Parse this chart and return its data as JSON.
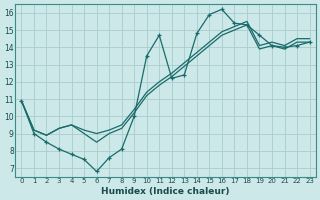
{
  "xlabel": "Humidex (Indice chaleur)",
  "bg_color": "#cce8e8",
  "grid_color": "#aacccc",
  "line_color": "#1a6b6b",
  "xlim": [
    -0.5,
    23.5
  ],
  "ylim": [
    6.5,
    16.5
  ],
  "xticks": [
    0,
    1,
    2,
    3,
    4,
    5,
    6,
    7,
    8,
    9,
    10,
    11,
    12,
    13,
    14,
    15,
    16,
    17,
    18,
    19,
    20,
    21,
    22,
    23
  ],
  "yticks": [
    7,
    8,
    9,
    10,
    11,
    12,
    13,
    14,
    15,
    16
  ],
  "line1_x": [
    0,
    1,
    2,
    3,
    4,
    5,
    6,
    7,
    8,
    9,
    10,
    11,
    12,
    13,
    14,
    15,
    16,
    17,
    18,
    19,
    20,
    21,
    22,
    23
  ],
  "line1_y": [
    10.9,
    9.0,
    8.5,
    8.1,
    7.8,
    7.5,
    6.8,
    7.6,
    8.1,
    10.0,
    13.5,
    14.7,
    12.2,
    12.4,
    14.8,
    15.9,
    16.2,
    15.4,
    15.3,
    14.7,
    14.1,
    14.0,
    14.1,
    14.3
  ],
  "line2_x": [
    0,
    1,
    2,
    3,
    4,
    5,
    6,
    7,
    8,
    9,
    10,
    11,
    12,
    13,
    14,
    15,
    16,
    17,
    18,
    19,
    20,
    21,
    22,
    23
  ],
  "line2_y": [
    10.9,
    9.2,
    8.9,
    9.3,
    9.5,
    9.0,
    8.5,
    9.0,
    9.3,
    10.2,
    11.2,
    11.8,
    12.3,
    12.9,
    13.5,
    14.1,
    14.7,
    15.0,
    15.3,
    13.9,
    14.1,
    13.9,
    14.3,
    14.3
  ],
  "line3_x": [
    0,
    1,
    2,
    3,
    4,
    5,
    6,
    7,
    8,
    9,
    10,
    11,
    12,
    13,
    14,
    15,
    16,
    17,
    18,
    19,
    20,
    21,
    22,
    23
  ],
  "line3_y": [
    10.9,
    9.2,
    8.9,
    9.3,
    9.5,
    9.2,
    9.0,
    9.2,
    9.5,
    10.4,
    11.4,
    12.0,
    12.5,
    13.1,
    13.7,
    14.3,
    14.9,
    15.2,
    15.5,
    14.1,
    14.3,
    14.1,
    14.5,
    14.5
  ]
}
